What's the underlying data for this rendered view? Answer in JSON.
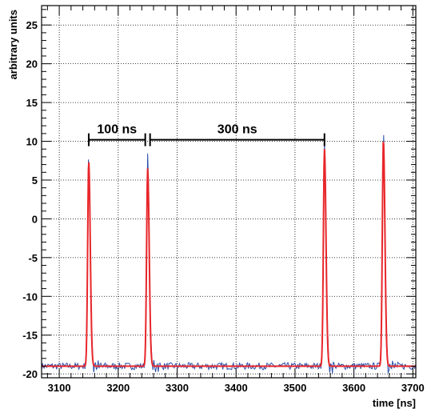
{
  "chart_data": {
    "type": "line",
    "title": "",
    "xlabel": "time [ns]",
    "ylabel": "arbitrary units",
    "xlim": [
      3070,
      3705
    ],
    "ylim": [
      -20.5,
      27.5
    ],
    "x_ticks": [
      3100,
      3200,
      3300,
      3400,
      3500,
      3600,
      3700
    ],
    "y_ticks": [
      -20,
      -15,
      -10,
      -5,
      0,
      5,
      10,
      15,
      20,
      25
    ],
    "grid": true,
    "series": [
      {
        "name": "",
        "color": "#2a4fa8",
        "style": "noisy measured waveform",
        "baseline": -19.0,
        "peaks": [
          {
            "x": 3150,
            "y": 8.3
          },
          {
            "x": 3250,
            "y": 8.3
          },
          {
            "x": 3550,
            "y": 10.0
          },
          {
            "x": 3650,
            "y": 11.3
          }
        ]
      },
      {
        "name": "",
        "color": "#e8262a",
        "style": "fit",
        "baseline": -19.0,
        "peaks": [
          {
            "x": 3150,
            "y": 7.4
          },
          {
            "x": 3250,
            "y": 6.5
          },
          {
            "x": 3550,
            "y": 9.0
          },
          {
            "x": 3650,
            "y": 10.2
          }
        ]
      }
    ],
    "annotations": [
      {
        "text": "100 ns",
        "x_start": 3150,
        "x_end": 3250,
        "y": 10.2
      },
      {
        "text": "300 ns",
        "x_start": 3250,
        "x_end": 3550,
        "y": 10.2
      }
    ]
  }
}
